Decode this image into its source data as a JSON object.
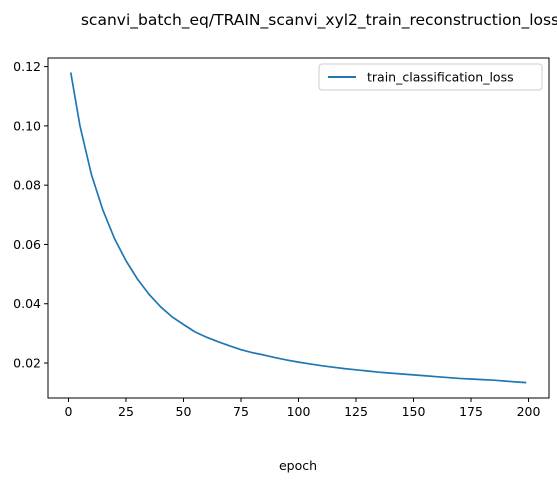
{
  "chart_data": {
    "type": "line",
    "title": "scanvi_batch_eq/TRAIN_scanvi_xyl2_train_reconstruction_loss",
    "xlabel": "epoch",
    "ylabel": "",
    "xlim": [
      -8.9,
      208.9
    ],
    "ylim": [
      0.0082,
      0.1229
    ],
    "xticks": [
      0,
      25,
      50,
      75,
      100,
      125,
      150,
      175,
      200
    ],
    "yticks": [
      0.02,
      0.04,
      0.06,
      0.08,
      0.1,
      0.12
    ],
    "ytick_labels": [
      "0.02",
      "0.04",
      "0.06",
      "0.08",
      "0.10",
      "0.12"
    ],
    "grid": false,
    "legend_position": "top-right",
    "series": [
      {
        "name": "train_classification_loss",
        "color": "#1f77b4",
        "x": [
          1,
          5,
          10,
          15,
          20,
          25,
          30,
          35,
          40,
          45,
          50,
          55,
          60,
          65,
          70,
          75,
          80,
          85,
          90,
          95,
          100,
          105,
          110,
          115,
          120,
          125,
          130,
          135,
          140,
          145,
          150,
          155,
          160,
          165,
          170,
          175,
          180,
          185,
          190,
          195,
          199
        ],
        "y": [
          0.118,
          0.1,
          0.0835,
          0.0715,
          0.062,
          0.0545,
          0.0483,
          0.0432,
          0.039,
          0.0356,
          0.033,
          0.0305,
          0.0287,
          0.0272,
          0.0258,
          0.0245,
          0.0235,
          0.0227,
          0.0218,
          0.021,
          0.0203,
          0.0197,
          0.0191,
          0.0186,
          0.0181,
          0.0177,
          0.0173,
          0.0169,
          0.0166,
          0.0163,
          0.016,
          0.0157,
          0.0154,
          0.0151,
          0.0148,
          0.0146,
          0.0144,
          0.0142,
          0.0139,
          0.0136,
          0.0134
        ]
      }
    ]
  }
}
